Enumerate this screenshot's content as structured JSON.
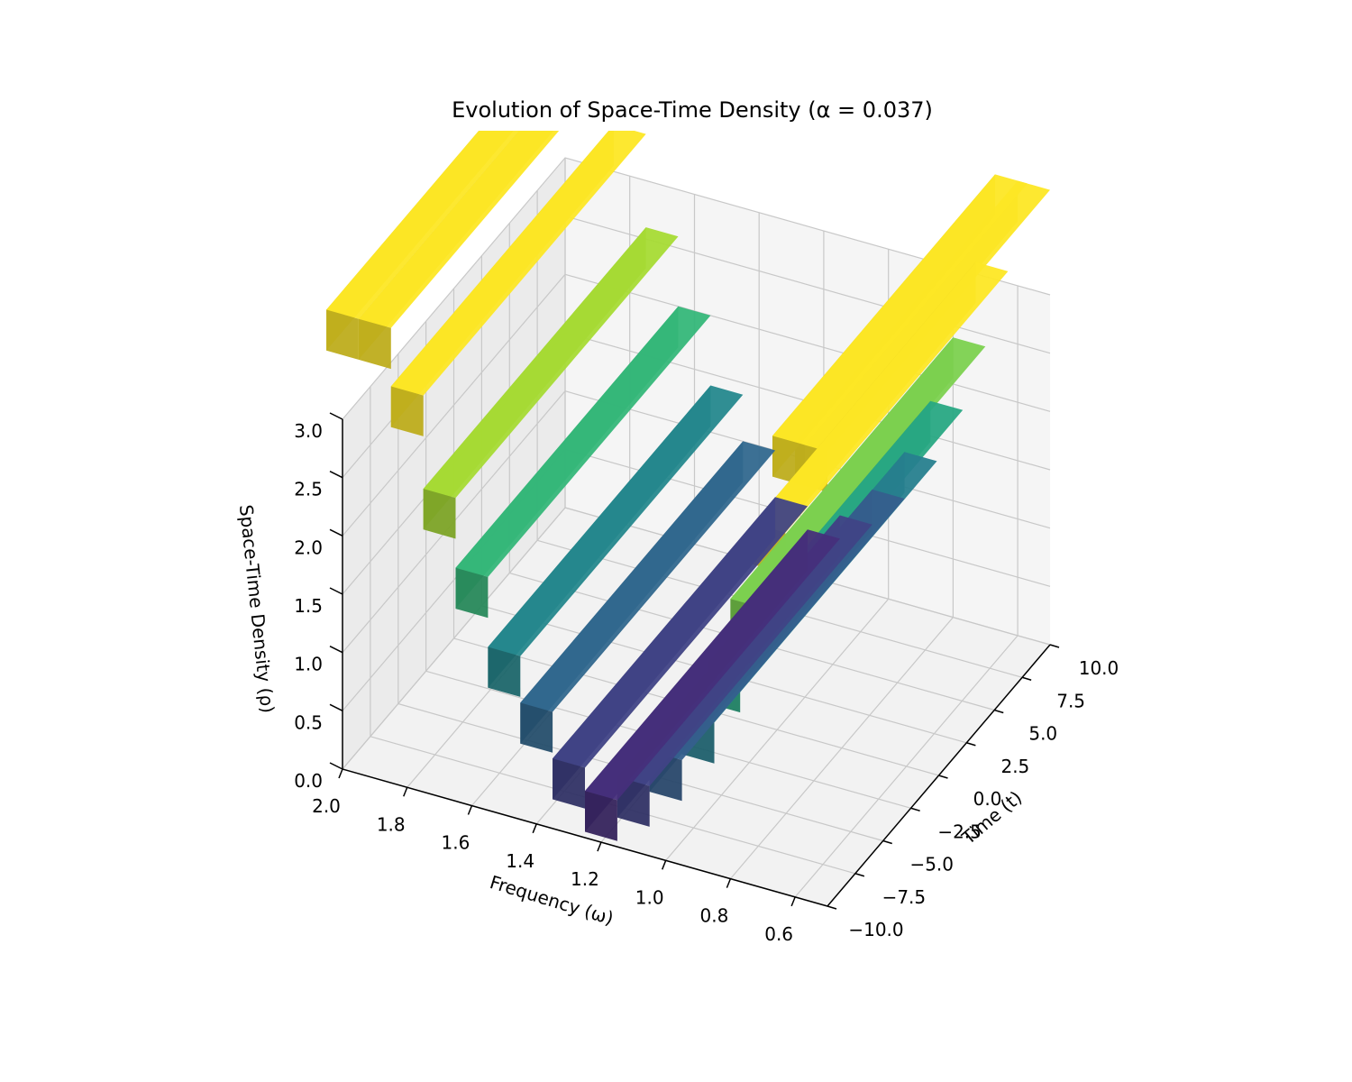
{
  "chart_data": {
    "type": "surface3d",
    "title": "Evolution of Space-Time Density (α = 0.037)",
    "xlabel": "Frequency (ω)",
    "ylabel": "Time (t)",
    "zlabel": "Space-Time Density (ρ)",
    "xlim": [
      0.5,
      2.0
    ],
    "ylim": [
      -10.0,
      10.0
    ],
    "zlim": [
      0.0,
      3.0
    ],
    "x_ticks": [
      "2.0",
      "1.8",
      "1.6",
      "1.4",
      "1.2",
      "1.0",
      "0.8",
      "0.6"
    ],
    "y_ticks": [
      "−10.0",
      "−7.5",
      "−5.0",
      "−2.5",
      "0.0",
      "2.5",
      "5.0",
      "7.5",
      "10.0"
    ],
    "z_ticks": [
      "0.0",
      "0.5",
      "1.0",
      "1.5",
      "2.0",
      "2.5",
      "3.0"
    ],
    "colormap": "viridis",
    "grid": true,
    "surface_levels": [
      {
        "omega": 0.55,
        "rho": 4.8
      },
      {
        "omega": 0.62,
        "rho": 3.9
      },
      {
        "omega": 0.68,
        "rho": 3.1
      },
      {
        "omega": 0.75,
        "rho": 2.4
      },
      {
        "omega": 0.82,
        "rho": 1.8
      },
      {
        "omega": 0.9,
        "rho": 1.3
      },
      {
        "omega": 1.0,
        "rho": 0.9
      },
      {
        "omega": 1.1,
        "rho": 0.6
      },
      {
        "omega": 1.2,
        "rho": 0.4
      },
      {
        "omega": 1.3,
        "rho": 0.6
      },
      {
        "omega": 1.4,
        "rho": 1.0
      },
      {
        "omega": 1.5,
        "rho": 1.4
      },
      {
        "omega": 1.6,
        "rho": 2.0
      },
      {
        "omega": 1.7,
        "rho": 2.6
      },
      {
        "omega": 1.8,
        "rho": 3.4
      },
      {
        "omega": 1.9,
        "rho": 4.2
      },
      {
        "omega": 2.0,
        "rho": 5.0
      }
    ]
  }
}
